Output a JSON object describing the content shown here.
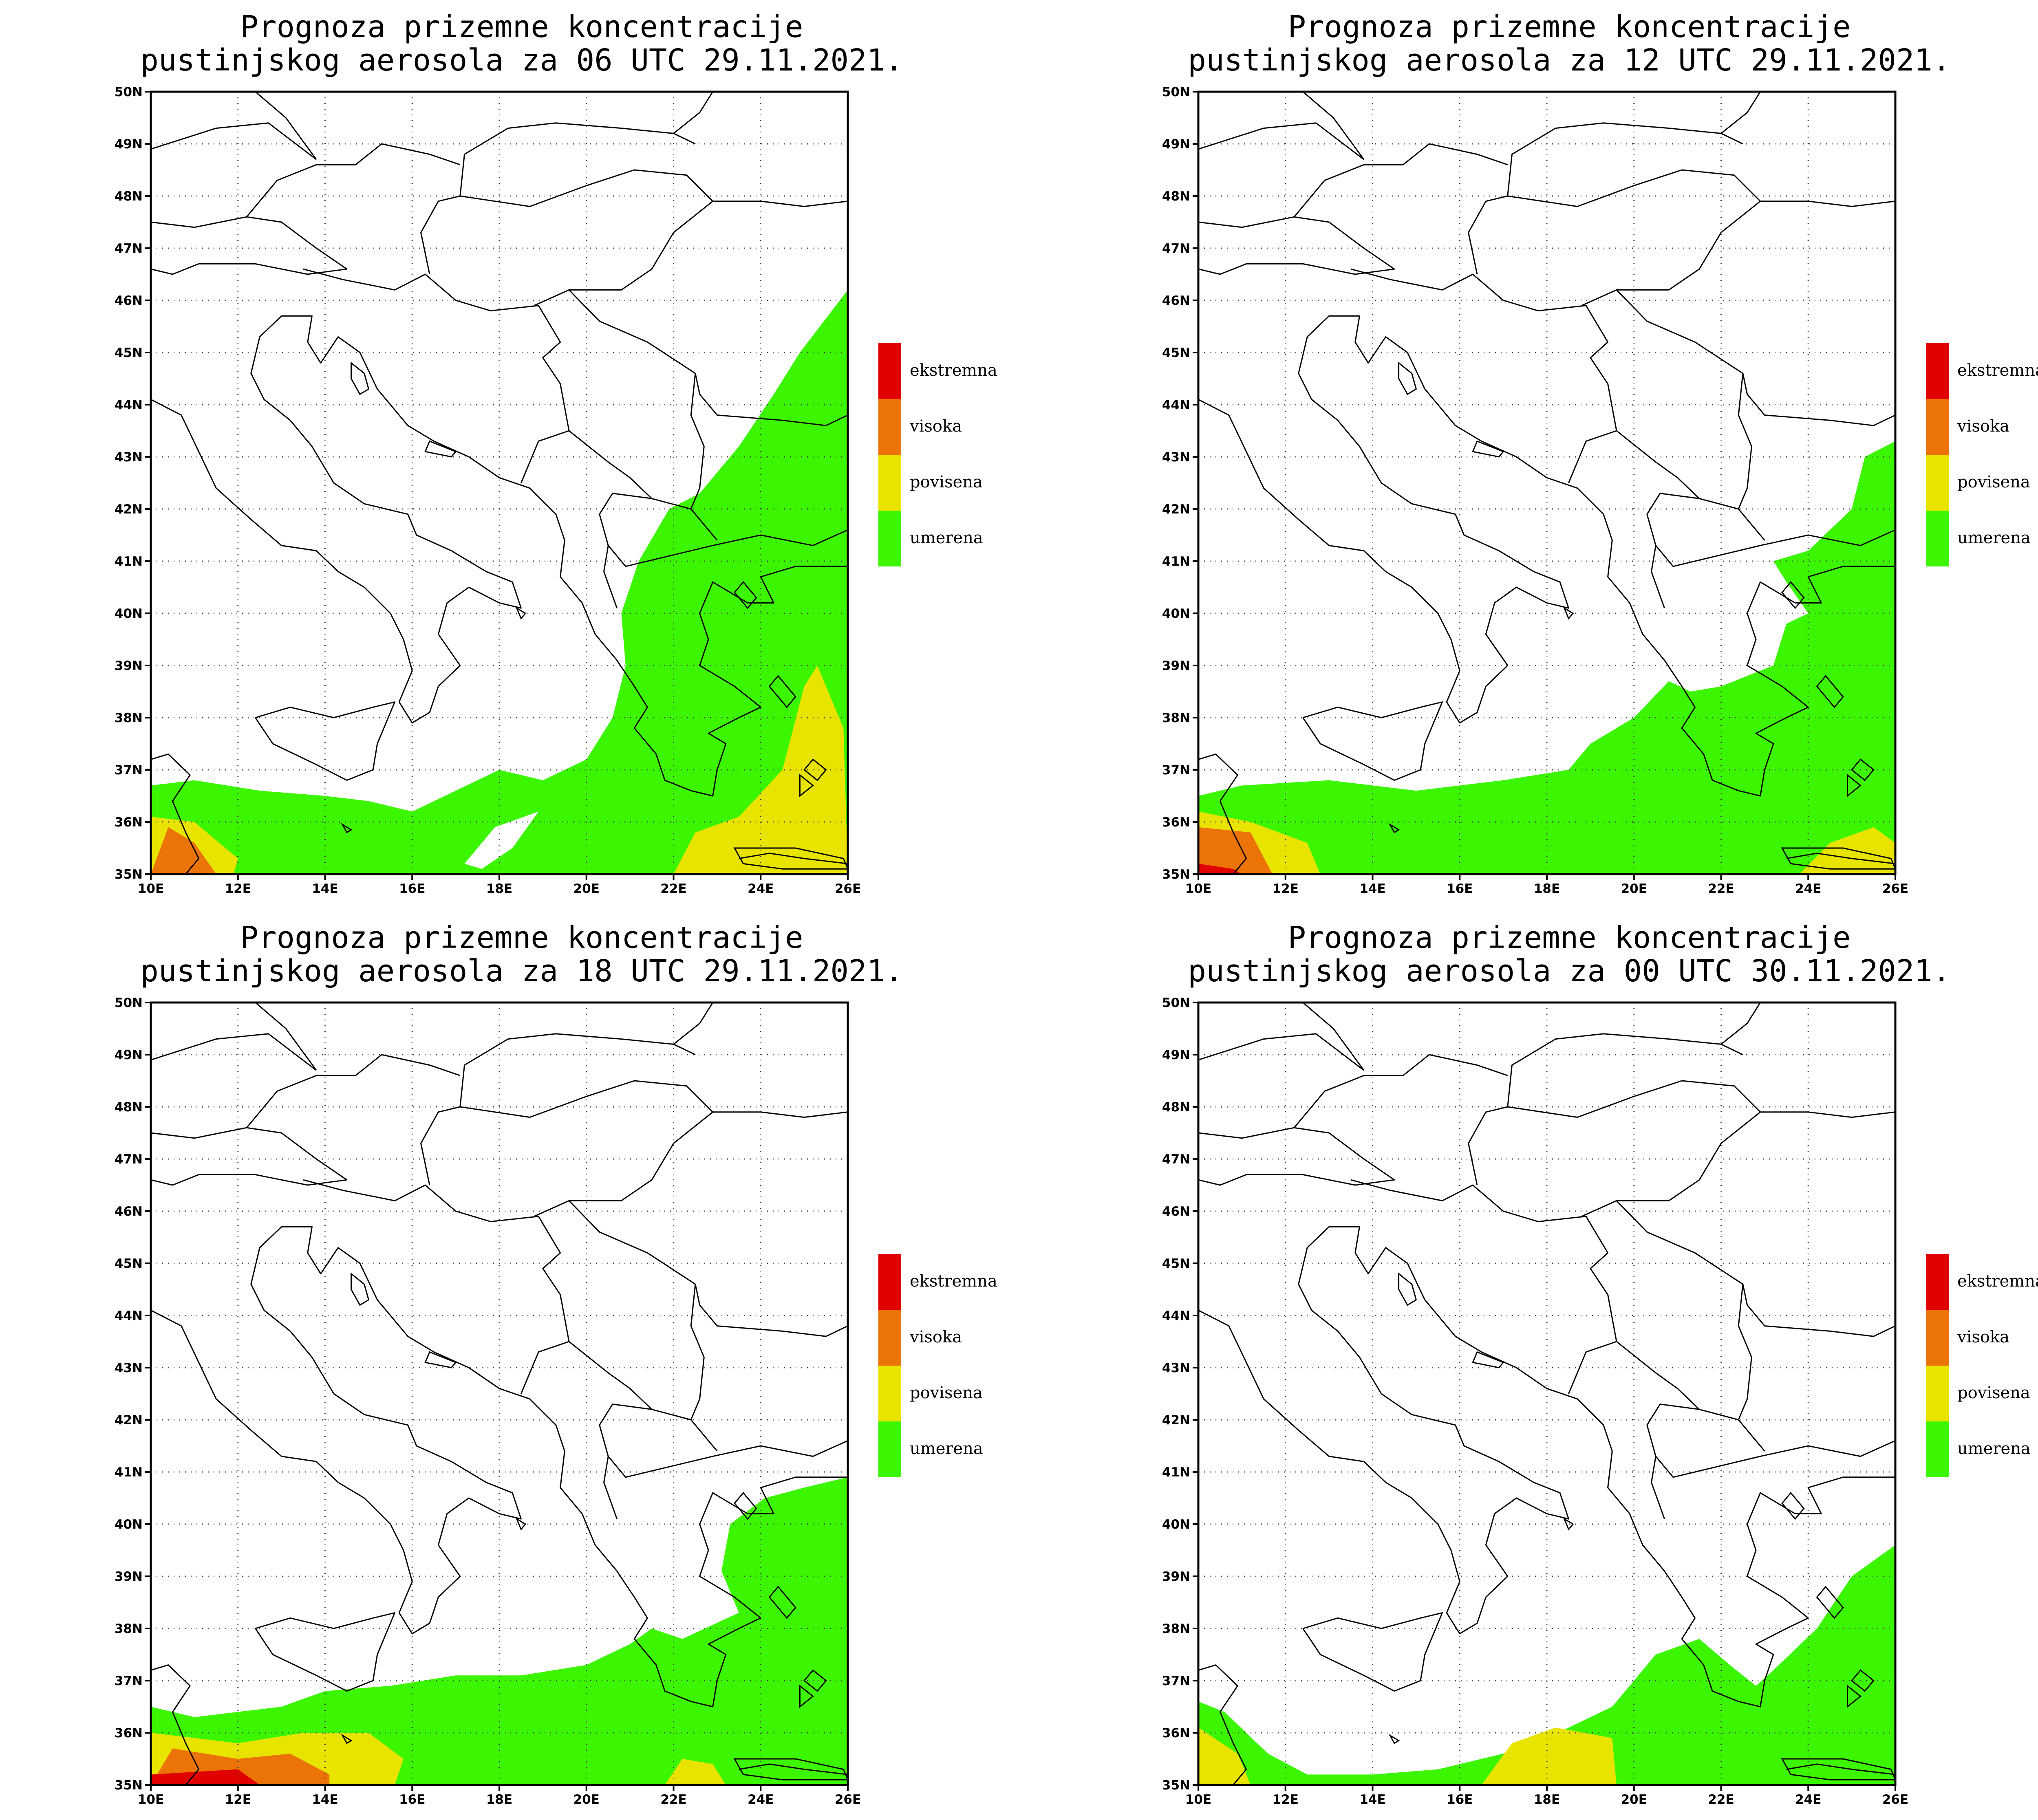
{
  "axes": {
    "lat_labels": [
      "35N",
      "36N",
      "37N",
      "38N",
      "39N",
      "40N",
      "41N",
      "42N",
      "43N",
      "44N",
      "45N",
      "46N",
      "47N",
      "48N",
      "49N",
      "50N"
    ],
    "lon_labels": [
      "10E",
      "12E",
      "14E",
      "16E",
      "18E",
      "20E",
      "22E",
      "24E",
      "26E"
    ]
  },
  "legend": {
    "items": [
      {
        "label": "ekstremna",
        "color": "#e00000"
      },
      {
        "label": "visoka",
        "color": "#ec7306"
      },
      {
        "label": "povisena",
        "color": "#e8e400"
      },
      {
        "label": "umerena",
        "color": "#3cf600"
      }
    ]
  },
  "panels": [
    {
      "title_line1": "Prognoza prizemne koncentracije",
      "title_line2": "pustinjskog aerosola za 06 UTC 29.11.2021."
    },
    {
      "title_line1": "Prognoza prizemne koncentracije",
      "title_line2": "pustinjskog aerosola za 12 UTC 29.11.2021."
    },
    {
      "title_line1": "Prognoza prizemne koncentracije",
      "title_line2": "pustinjskog aerosola za 18 UTC 29.11.2021."
    },
    {
      "title_line1": "Prognoza prizemne koncentracije",
      "title_line2": "pustinjskog aerosola za 00 UTC 30.11.2021."
    }
  ]
}
